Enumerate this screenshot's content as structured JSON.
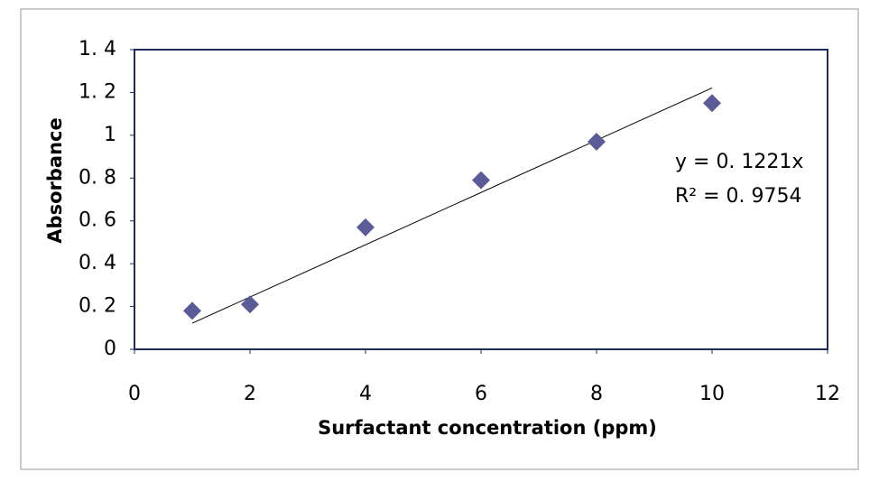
{
  "chart_data": {
    "type": "scatter",
    "x_label": "Surfactant concentration (ppm)",
    "y_label": "Absorbance",
    "x": [
      1,
      2,
      4,
      6,
      8,
      10
    ],
    "series": [
      {
        "name": "Absorbance",
        "color": "#5b5b98",
        "values": [
          0.18,
          0.21,
          0.57,
          0.79,
          0.97,
          1.15
        ]
      }
    ],
    "trendline": {
      "slope": 0.1221,
      "xrange": [
        1,
        10
      ],
      "equation": "y = 0. 1221x",
      "r2_label": "R² = 0. 9754"
    },
    "xlim": [
      0,
      12
    ],
    "xticks": [
      0,
      2,
      4,
      6,
      8,
      10,
      12
    ],
    "ylim": [
      0,
      1.4
    ],
    "yticks": [
      0,
      {
        "value": 0.2,
        "label": "0. 2"
      },
      {
        "value": 0.4,
        "label": "0. 4"
      },
      {
        "value": 0.6,
        "label": "0. 6"
      },
      {
        "value": 0.8,
        "label": "0. 8"
      },
      1,
      {
        "value": 1.2,
        "label": "1. 2"
      },
      {
        "value": 1.4,
        "label": "1. 4"
      }
    ],
    "grid": false
  }
}
